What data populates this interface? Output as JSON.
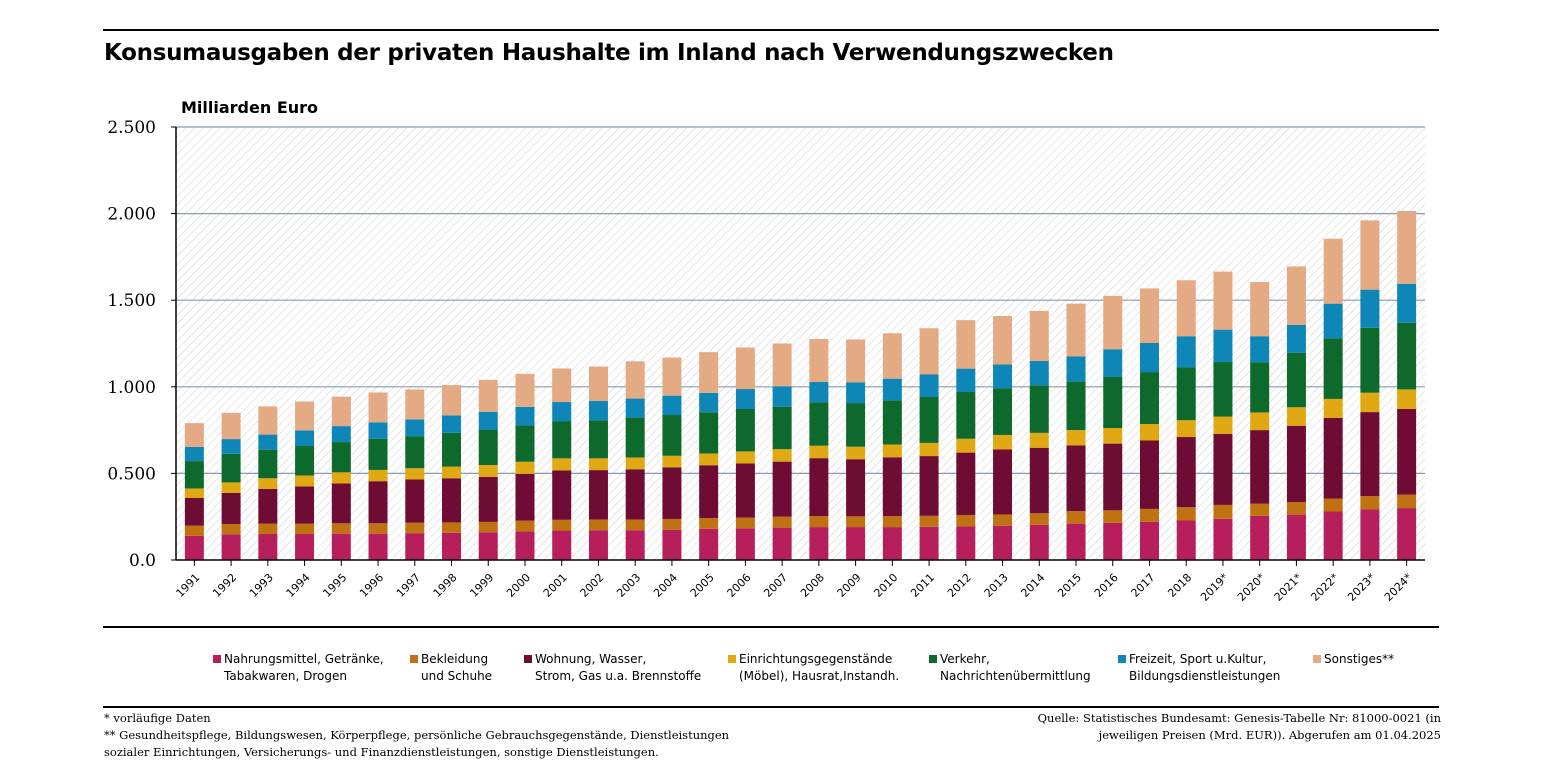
{
  "title": "Konsumausgaben der privaten Haushalte im Inland nach Verwendungszwecken",
  "footnotes": {
    "provisional": "* vorläufige Daten",
    "other_line1": "** Gesundheitspflege, Bildungswesen, Körperpflege, persönliche Gebrauchsgegenstände, Dienstleistungen",
    "other_line2": "sozialer Einrichtungen, Versicherungs- und Finanzdienstleistungen, sonstige Dienstleistungen."
  },
  "source": {
    "line1": "Quelle: Statistisches Bundesamt: Genesis-Tabelle Nr: 81000-0021 (in",
    "line2": "jeweiligen Preisen (Mrd. EUR)). Abgerufen am 01.04.2025"
  },
  "legend": [
    {
      "line1": "Nahrungsmittel, Getränke,",
      "line2": "Tabakwaren, Drogen",
      "color": "#b61f5c"
    },
    {
      "line1": "Bekleidung",
      "line2": "und Schuhe",
      "color": "#c07213"
    },
    {
      "line1": "Wohnung, Wasser,",
      "line2": "Strom, Gas u.a. Brennstoffe",
      "color": "#6e0c34"
    },
    {
      "line1": "Einrichtungsgegenstände",
      "line2": "(Möbel), Hausrat,Instandh.",
      "color": "#e0a812"
    },
    {
      "line1": "Verkehr,",
      "line2": "Nachrichtenübermittlung",
      "color": "#0e6a2c"
    },
    {
      "line1": "Freizeit, Sport u.Kultur,",
      "line2": "Bildungsdienstleistungen",
      "color": "#0f86b8"
    },
    {
      "line1": "Sonstiges**",
      "line2": "",
      "color": "#e3aa84"
    }
  ],
  "chart_data": {
    "type": "bar",
    "stacked": true,
    "ylabel": "Milliarden Euro",
    "ylim": [
      0,
      2500
    ],
    "yticks": [
      0,
      500,
      1000,
      1500,
      2000,
      2500
    ],
    "ytick_labels": [
      "0.0",
      "0.500",
      "1.000",
      "1.500",
      "2.000",
      "2.500"
    ],
    "categories": [
      "1991",
      "1992",
      "1993",
      "1994",
      "1995",
      "1996",
      "1997",
      "1998",
      "1999",
      "2000",
      "2001",
      "2002",
      "2003",
      "2004",
      "2005",
      "2006",
      "2007",
      "2008",
      "2009",
      "2010",
      "2011",
      "2012",
      "2013",
      "2014",
      "2015",
      "2016",
      "2017",
      "2018",
      "2019*",
      "2020*",
      "2021*",
      "2022*",
      "2023*",
      "2024*"
    ],
    "series": [
      {
        "name": "Nahrungsmittel, Getränke, Tabakwaren, Drogen",
        "color": "#b61f5c",
        "values": [
          140,
          148,
          150,
          150,
          152,
          152,
          155,
          157,
          160,
          165,
          170,
          172,
          172,
          175,
          180,
          183,
          187,
          190,
          190,
          190,
          192,
          195,
          198,
          203,
          210,
          215,
          220,
          228,
          238,
          255,
          262,
          280,
          292,
          300
        ]
      },
      {
        "name": "Bekleidung und Schuhe",
        "color": "#c07213",
        "values": [
          58,
          60,
          60,
          60,
          60,
          60,
          60,
          60,
          60,
          62,
          62,
          62,
          62,
          62,
          62,
          62,
          63,
          63,
          62,
          63,
          63,
          65,
          65,
          67,
          72,
          72,
          75,
          77,
          80,
          70,
          73,
          75,
          77,
          77
        ]
      },
      {
        "name": "Wohnung, Wasser, Strom, Gas u.a. Brennstoffe",
        "color": "#6e0c34",
        "values": [
          160,
          180,
          200,
          215,
          230,
          243,
          250,
          255,
          260,
          270,
          285,
          285,
          290,
          297,
          305,
          312,
          318,
          335,
          330,
          340,
          345,
          360,
          375,
          378,
          380,
          385,
          395,
          405,
          410,
          425,
          440,
          465,
          485,
          495
        ]
      },
      {
        "name": "Einrichtungsgegenstände (Möbel), Hausrat, Instandh.",
        "color": "#e0a812",
        "values": [
          55,
          60,
          62,
          63,
          64,
          65,
          65,
          67,
          68,
          70,
          70,
          68,
          68,
          68,
          68,
          70,
          72,
          72,
          72,
          74,
          76,
          80,
          84,
          86,
          88,
          90,
          95,
          97,
          100,
          102,
          107,
          110,
          112,
          113
        ]
      },
      {
        "name": "Verkehr, Nachrichtenübermittlung",
        "color": "#0e6a2c",
        "values": [
          158,
          165,
          165,
          170,
          175,
          180,
          185,
          195,
          205,
          210,
          215,
          220,
          230,
          235,
          238,
          245,
          245,
          250,
          252,
          255,
          265,
          270,
          270,
          275,
          280,
          295,
          300,
          305,
          315,
          290,
          315,
          350,
          375,
          385
        ]
      },
      {
        "name": "Freizeit, Sport u.Kultur, Bildungsdienstleistungen",
        "color": "#0f86b8",
        "values": [
          82,
          85,
          87,
          90,
          92,
          95,
          97,
          101,
          103,
          107,
          110,
          111,
          110,
          112,
          112,
          115,
          118,
          118,
          120,
          125,
          130,
          135,
          137,
          140,
          145,
          160,
          168,
          180,
          187,
          150,
          160,
          200,
          220,
          225
        ]
      },
      {
        "name": "Sonstiges**",
        "color": "#e3aa84",
        "values": [
          137,
          152,
          163,
          167,
          170,
          172,
          173,
          175,
          184,
          191,
          194,
          199,
          215,
          220,
          235,
          240,
          247,
          248,
          247,
          262,
          267,
          280,
          280,
          289,
          305,
          308,
          315,
          323,
          335,
          313,
          338,
          375,
          400,
          420
        ]
      }
    ]
  }
}
